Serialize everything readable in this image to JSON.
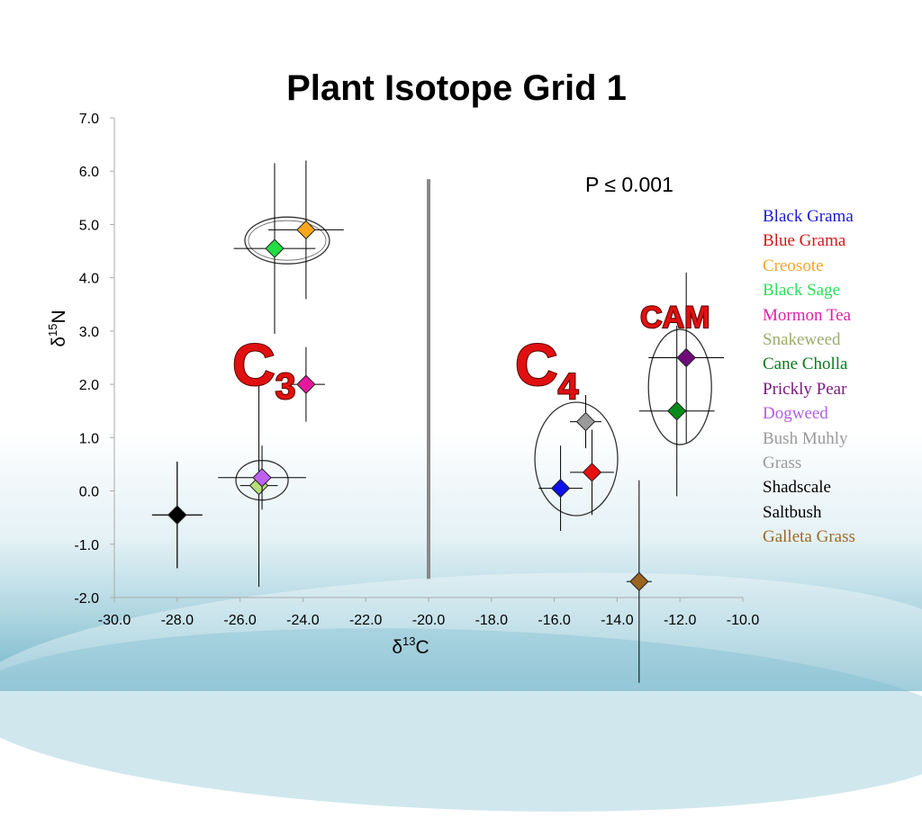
{
  "chart_data": {
    "type": "scatter",
    "title": "Plant Isotope Grid 1",
    "xlabel": "δ13C",
    "ylabel": "δ15N",
    "xlim": [
      -30,
      -10
    ],
    "ylim": [
      -2,
      7
    ],
    "x_ticks": [
      "-30.0",
      "-28.0",
      "-26.0",
      "-24.0",
      "-22.0",
      "-20.0",
      "-18.0",
      "-16.0",
      "-14.0",
      "-12.0",
      "-10.0"
    ],
    "y_ticks": [
      "7.0",
      "6.0",
      "5.0",
      "4.0",
      "3.0",
      "2.0",
      "1.0",
      "0.0",
      "-1.0",
      "-2.0"
    ],
    "divider_x": -20,
    "annotations": {
      "p_value": "P ≤ 0.001",
      "c3": "C",
      "c3_sub": "3",
      "c4": "C",
      "c4_sub": "4",
      "cam": "CAM"
    },
    "legend_placement": "right",
    "series": [
      {
        "name": "Black Grama",
        "color": "#1010e8",
        "x": -15.8,
        "y": 0.05,
        "x_err": [
          0.7,
          0.7
        ],
        "y_err": [
          0.8,
          0.8
        ]
      },
      {
        "name": "Blue Grama",
        "color": "#e81010",
        "x": -14.8,
        "y": 0.35,
        "x_err": [
          0.7,
          0.7
        ],
        "y_err": [
          0.8,
          0.8
        ]
      },
      {
        "name": "Creosote",
        "color": "#f8a81a",
        "x": -23.9,
        "y": 4.9,
        "x_err": [
          1.2,
          1.2
        ],
        "y_err": [
          1.3,
          1.3
        ]
      },
      {
        "name": "Black Sage",
        "color": "#22dd44",
        "x": -24.9,
        "y": 4.55,
        "x_err": [
          1.3,
          1.3
        ],
        "y_err": [
          1.6,
          1.6
        ]
      },
      {
        "name": "Mormon Tea",
        "color": "#e8189c",
        "x": -23.9,
        "y": 2.0,
        "x_err": [
          0.6,
          0.6
        ],
        "y_err": [
          0.7,
          0.7
        ]
      },
      {
        "name": "Snakeweed",
        "color": "#b7e07a",
        "x": -25.4,
        "y": 0.1,
        "x_err": [
          0.6,
          0.6
        ],
        "y_err": [
          1.9,
          1.9
        ]
      },
      {
        "name": "Cane Cholla",
        "color": "#0a8a1a",
        "x": -12.1,
        "y": 1.5,
        "x_err": [
          1.2,
          1.2
        ],
        "y_err": [
          1.6,
          1.6
        ]
      },
      {
        "name": "Prickly Pear",
        "color": "#700a7a",
        "x": -11.8,
        "y": 2.5,
        "x_err": [
          1.2,
          1.2
        ],
        "y_err": [
          1.6,
          1.6
        ]
      },
      {
        "name": "Dogweed",
        "color": "#c060f0",
        "x": -25.3,
        "y": 0.25,
        "x_err": [
          1.4,
          1.4
        ],
        "y_err": [
          0.6,
          0.6
        ]
      },
      {
        "name": "Bush Muhly Grass",
        "color": "#9a9a9a",
        "x": -15.0,
        "y": 1.3,
        "x_err": [
          0.5,
          0.5
        ],
        "y_err": [
          0.5,
          0.5
        ]
      },
      {
        "name": "Shadscale",
        "color": "#000000",
        "x": -28.0,
        "y": -0.45,
        "x_err": [
          0.8,
          0.8
        ],
        "y_err": [
          1.0,
          1.0
        ]
      },
      {
        "name": "Saltbush",
        "color": "#000000",
        "x": -28.0,
        "y": -0.45,
        "x_err": [
          0.8,
          0.8
        ],
        "y_err": [
          1.0,
          1.0
        ]
      },
      {
        "name": "Galleta Grass",
        "color": "#9a6420",
        "x": -13.3,
        "y": -1.7,
        "x_err": [
          0.4,
          0.4
        ],
        "y_err": [
          1.9,
          1.9
        ]
      }
    ]
  },
  "legend": [
    {
      "label": "Black Grama",
      "color": "#1a1ad0"
    },
    {
      "label": "Blue Grama",
      "color": "#d01818"
    },
    {
      "label": "Creosote",
      "color": "#f5a52a"
    },
    {
      "label": "Black Sage",
      "color": "#2ee05a"
    },
    {
      "label": "Mormon Tea",
      "color": "#e020a8"
    },
    {
      "label": "Snakeweed",
      "color": "#9aac6a"
    },
    {
      "label": "Cane Cholla",
      "color": "#0a7a1a"
    },
    {
      "label": "Prickly Pear",
      "color": "#7a1a80"
    },
    {
      "label": "Dogweed",
      "color": "#b060e0"
    },
    {
      "label": "Bush Muhly",
      "color": "#9a9a9a"
    },
    {
      "label": "Grass",
      "color": "#9a9a9a"
    },
    {
      "label": "Shadscale",
      "color": "#000000"
    },
    {
      "label": "Saltbush",
      "color": "#000000"
    },
    {
      "label": "Galleta Grass",
      "color": "#9a6a28"
    }
  ]
}
